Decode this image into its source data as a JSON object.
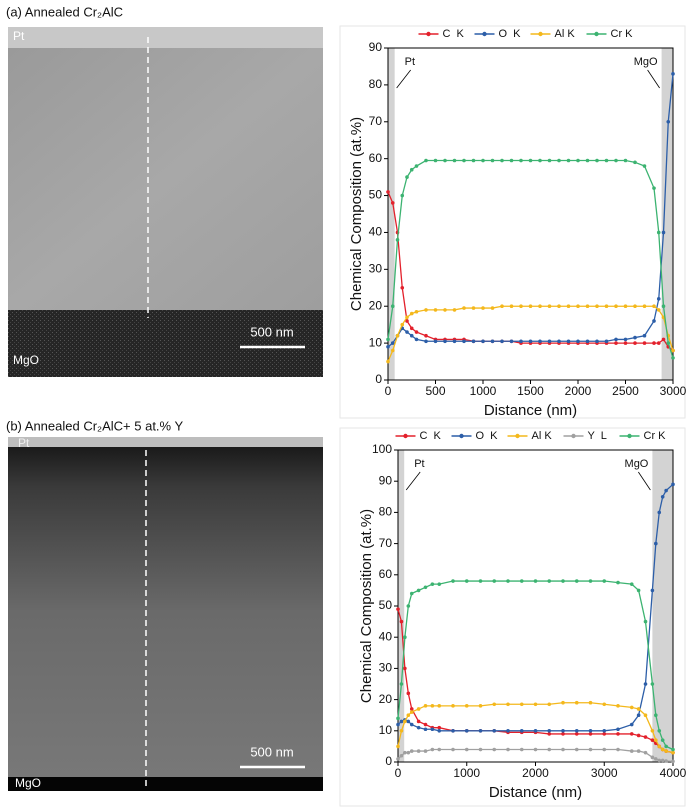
{
  "images": [
    {
      "title": "(a) Annealed Cr₂AlC",
      "top_label": "Pt",
      "bottom_label": "MgO",
      "scale_bar": "500 nm"
    },
    {
      "title": "(b) Annealed Cr₂AlC+ 5 at.% Y",
      "top_label": "Pt",
      "bottom_label": "MgO",
      "scale_bar": "500 nm"
    }
  ],
  "chart_data": [
    {
      "type": "line",
      "x_label": "Distance (nm)",
      "y_label": "Chemical Composition (at.%)",
      "xlim": [
        0,
        3000
      ],
      "xticks": [
        0,
        500,
        1000,
        1500,
        2000,
        2500,
        3000
      ],
      "ylim": [
        0,
        90
      ],
      "yticks": [
        0,
        10,
        20,
        30,
        40,
        50,
        60,
        70,
        80,
        90
      ],
      "regions": [
        {
          "label": "Pt",
          "from": 0,
          "to": 70
        },
        {
          "label": "MgO",
          "from": 2880,
          "to": 3000
        }
      ],
      "x": [
        0,
        50,
        100,
        150,
        200,
        250,
        300,
        400,
        500,
        600,
        700,
        800,
        900,
        1000,
        1100,
        1200,
        1300,
        1400,
        1500,
        1600,
        1700,
        1800,
        1900,
        2000,
        2100,
        2200,
        2300,
        2400,
        2500,
        2600,
        2700,
        2800,
        2850,
        2900,
        2950,
        3000
      ],
      "series": [
        {
          "name": "C  K",
          "color": "#e3202b",
          "values": [
            51,
            48,
            40,
            25,
            16,
            14,
            13,
            12,
            11,
            11,
            11,
            11,
            10.5,
            10.5,
            10.5,
            10.5,
            10.5,
            10,
            10,
            10,
            10,
            10,
            10,
            10,
            10,
            10,
            10,
            10,
            10,
            10,
            10,
            10,
            10,
            11,
            9,
            8
          ]
        },
        {
          "name": "O  K",
          "color": "#2c5ea8",
          "values": [
            9,
            10,
            12,
            14,
            13,
            12,
            11,
            10.5,
            10.5,
            10.5,
            10.5,
            10.5,
            10.5,
            10.5,
            10.5,
            10.5,
            10.5,
            10.5,
            10.5,
            10.5,
            10.5,
            10.5,
            10.5,
            10.5,
            10.5,
            10.5,
            10.5,
            11,
            11,
            11.5,
            12,
            16,
            22,
            40,
            70,
            83
          ]
        },
        {
          "name": "Al K",
          "color": "#f4b81c",
          "values": [
            5,
            8,
            12,
            15,
            17,
            18,
            18.5,
            19,
            19,
            19,
            19,
            19.5,
            19.5,
            19.5,
            19.5,
            20,
            20,
            20,
            20,
            20,
            20,
            20,
            20,
            20,
            20,
            20,
            20,
            20,
            20,
            20,
            20,
            20,
            19,
            17,
            12,
            8
          ]
        },
        {
          "name": "Cr K",
          "color": "#3cb371",
          "values": [
            11,
            20,
            38,
            50,
            55,
            57,
            58,
            59.5,
            59.5,
            59.5,
            59.5,
            59.5,
            59.5,
            59.5,
            59.5,
            59.5,
            59.5,
            59.5,
            59.5,
            59.5,
            59.5,
            59.5,
            59.5,
            59.5,
            59.5,
            59.5,
            59.5,
            59.5,
            59.5,
            59,
            58,
            52,
            40,
            20,
            10,
            6
          ]
        }
      ]
    },
    {
      "type": "line",
      "x_label": "Distance (nm)",
      "y_label": "Chemical Composition (at.%)",
      "xlim": [
        0,
        4000
      ],
      "xticks": [
        0,
        1000,
        2000,
        3000,
        4000
      ],
      "ylim": [
        0,
        100
      ],
      "yticks": [
        0,
        10,
        20,
        30,
        40,
        50,
        60,
        70,
        80,
        90,
        100
      ],
      "regions": [
        {
          "label": "Pt",
          "from": 0,
          "to": 90
        },
        {
          "label": "MgO",
          "from": 3700,
          "to": 4000
        }
      ],
      "x": [
        0,
        50,
        100,
        150,
        200,
        300,
        400,
        500,
        600,
        800,
        1000,
        1200,
        1400,
        1600,
        1800,
        2000,
        2200,
        2400,
        2600,
        2800,
        3000,
        3200,
        3400,
        3500,
        3600,
        3700,
        3750,
        3800,
        3850,
        3900,
        4000
      ],
      "series": [
        {
          "name": "C  K",
          "color": "#e3202b",
          "values": [
            49,
            45,
            30,
            22,
            17,
            13,
            12,
            11,
            11,
            10,
            10,
            10,
            10,
            9.5,
            9.5,
            9.5,
            9,
            9,
            9,
            9,
            9,
            9,
            9,
            8.5,
            8,
            7,
            6,
            5,
            4,
            3.5,
            3
          ]
        },
        {
          "name": "O  K",
          "color": "#2c5ea8",
          "values": [
            12,
            13,
            13.5,
            13,
            12,
            11,
            10.5,
            10.5,
            10,
            10,
            10,
            10,
            10,
            10,
            10,
            10,
            10,
            10,
            10,
            10,
            10,
            10.5,
            12,
            15,
            25,
            55,
            70,
            80,
            85,
            87,
            89
          ]
        },
        {
          "name": "Al K",
          "color": "#f4b81c",
          "values": [
            5,
            10,
            13,
            15,
            16,
            17,
            18,
            18,
            18,
            18,
            18,
            18,
            18.5,
            18.5,
            18.5,
            18.5,
            18.5,
            19,
            19,
            19,
            18.5,
            18,
            17.5,
            17,
            15,
            10,
            7,
            5,
            4,
            3.5,
            3
          ]
        },
        {
          "name": "Y  L",
          "color": "#a0a0a0",
          "values": [
            1,
            2,
            3,
            3,
            3.5,
            3.5,
            3.5,
            4,
            4,
            4,
            4,
            4,
            4,
            4,
            4,
            4,
            4,
            4,
            4,
            4,
            4,
            4,
            3.5,
            3.5,
            3,
            1.5,
            1,
            0.5,
            0.5,
            0.3,
            0.2
          ]
        },
        {
          "name": "Cr K",
          "color": "#3cb371",
          "values": [
            14,
            25,
            40,
            50,
            54,
            55,
            56,
            57,
            57,
            58,
            58,
            58,
            58,
            58,
            58,
            58,
            58,
            58,
            58,
            58,
            58,
            57.5,
            57,
            55,
            45,
            25,
            15,
            10,
            7,
            5,
            4
          ]
        }
      ]
    }
  ]
}
